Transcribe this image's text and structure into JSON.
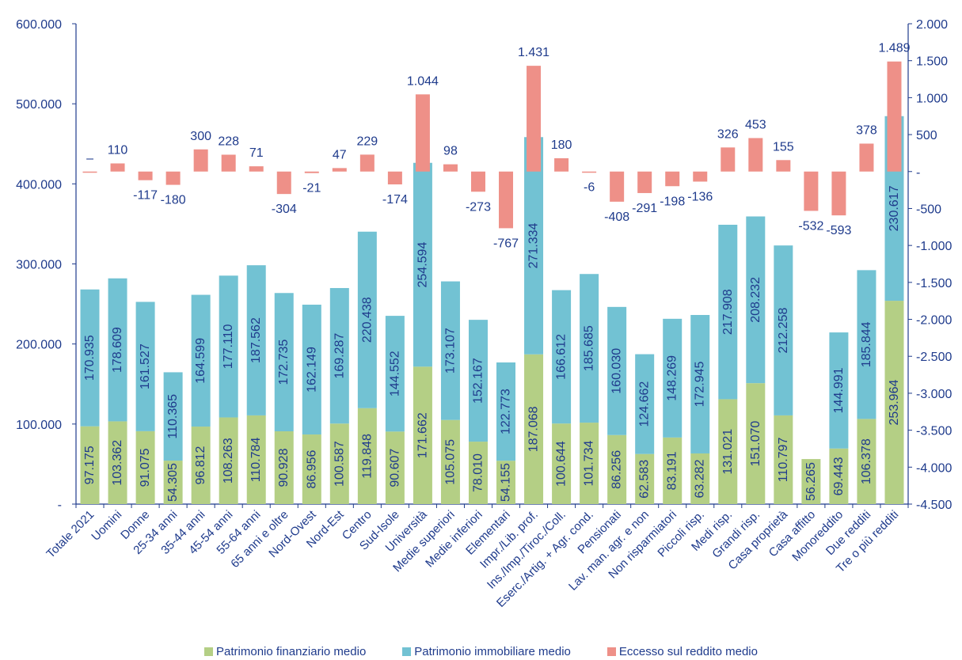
{
  "chart_data": {
    "type": "bar",
    "categories": [
      "Totale 2021",
      "Uomini",
      "Donne",
      "25-34 anni",
      "35-44 anni",
      "45-54 anni",
      "55-64 anni",
      "65 anni e oltre",
      "Nord-Ovest",
      "Nord-Est",
      "Centro",
      "Sud-Isole",
      "Università",
      "Medie superiori",
      "Medie inferiori",
      "Elementari",
      "Impr./Lib. prof.",
      "Ins./Imp./Tiroc./Coll.",
      "Eserc./Artig. + Agr. cond.",
      "Pensionati",
      "Lav. man. agr. e non",
      "Non risparmiatori",
      "Piccoli risp.",
      "Medi risp.",
      "Grandi risp.",
      "Casa proprietà",
      "Casa affitto",
      "Monoreddito",
      "Due redditi",
      "Tre o più redditi"
    ],
    "series": [
      {
        "name": "Patrimonio finanziario medio",
        "axis": "left",
        "stacked": true,
        "values": [
          97175,
          103362,
          91075,
          54305,
          96812,
          108263,
          110784,
          90928,
          86956,
          100587,
          119848,
          90607,
          171662,
          105075,
          78010,
          54155,
          187068,
          100644,
          101734,
          86256,
          62583,
          83191,
          63282,
          131021,
          151070,
          110797,
          56265,
          69443,
          106378,
          253964
        ],
        "labels": [
          "97.175",
          "103.362",
          "91.075",
          "54.305",
          "96.812",
          "108.263",
          "110.784",
          "90.928",
          "86.956",
          "100.587",
          "119.848",
          "90.607",
          "171.662",
          "105.075",
          "78.010",
          "54.155",
          "187.068",
          "100.644",
          "101.734",
          "86.256",
          "62.583",
          "83.191",
          "63.282",
          "131.021",
          "151.070",
          "110.797",
          "56.265",
          "69.443",
          "106.378",
          "253.964"
        ]
      },
      {
        "name": "Patrimonio immobiliare medio",
        "axis": "left",
        "stacked": true,
        "values": [
          170935,
          178609,
          161527,
          110365,
          164599,
          177110,
          187562,
          172735,
          162149,
          169287,
          220438,
          144552,
          254594,
          173107,
          152167,
          122773,
          271334,
          166612,
          185685,
          160030,
          124662,
          148269,
          172945,
          217908,
          208232,
          212258,
          0,
          144991,
          185844,
          230617
        ],
        "labels": [
          "170.935",
          "178.609",
          "161.527",
          "110.365",
          "164.599",
          "177.110",
          "187.562",
          "172.735",
          "162.149",
          "169.287",
          "220.438",
          "144.552",
          "254.594",
          "173.107",
          "152.167",
          "122.773",
          "271.334",
          "166.612",
          "185.685",
          "160.030",
          "124.662",
          "148.269",
          "172.945",
          "217.908",
          "208.232",
          "212.258",
          "",
          "144.991",
          "185.844",
          "230.617"
        ]
      },
      {
        "name": "Eccesso sul reddito medio",
        "axis": "right",
        "values": [
          0,
          110,
          -117,
          -180,
          300,
          228,
          71,
          -304,
          -21,
          47,
          229,
          -174,
          1044,
          98,
          -273,
          -767,
          1431,
          180,
          -6,
          -408,
          -291,
          -198,
          -136,
          326,
          453,
          155,
          -532,
          -593,
          378,
          1489
        ],
        "labels": [
          "–",
          "110",
          "-117",
          "-180",
          "300",
          "228",
          "71",
          "-304",
          "-21",
          "47",
          "229",
          "-174",
          "1.044",
          "98",
          "-273",
          "-767",
          "1.431",
          "180",
          "-6",
          "-408",
          "-291",
          "-198",
          "-136",
          "326",
          "453",
          "155",
          "-532",
          "-593",
          "378",
          "1.489"
        ]
      }
    ],
    "y_left": {
      "ylim": [
        0,
        600000
      ],
      "ticks": [
        0,
        100000,
        200000,
        300000,
        400000,
        500000,
        600000
      ],
      "tick_labels": [
        "-",
        "100.000",
        "200.000",
        "300.000",
        "400.000",
        "500.000",
        "600.000"
      ]
    },
    "y_right": {
      "ylim": [
        -4500,
        2000
      ],
      "ticks": [
        -4500,
        -4000,
        -3500,
        -3000,
        -2500,
        -2000,
        -1500,
        -1000,
        -500,
        0,
        500,
        1000,
        1500,
        2000
      ],
      "tick_labels": [
        "-4.500",
        "-4.000",
        "-3.500",
        "-3.000",
        "-2.500",
        "-2.000",
        "-1.500",
        "-1.000",
        "-500",
        "-",
        "500",
        "1.000",
        "1.500",
        "2.000"
      ]
    },
    "legend_position": "bottom",
    "grid": false,
    "colors": {
      "fin": "#b4cf85",
      "imm": "#72c2d3",
      "ecc": "#ee9088",
      "axis": "#1f3b8c",
      "text": "#1f3b8c"
    }
  }
}
